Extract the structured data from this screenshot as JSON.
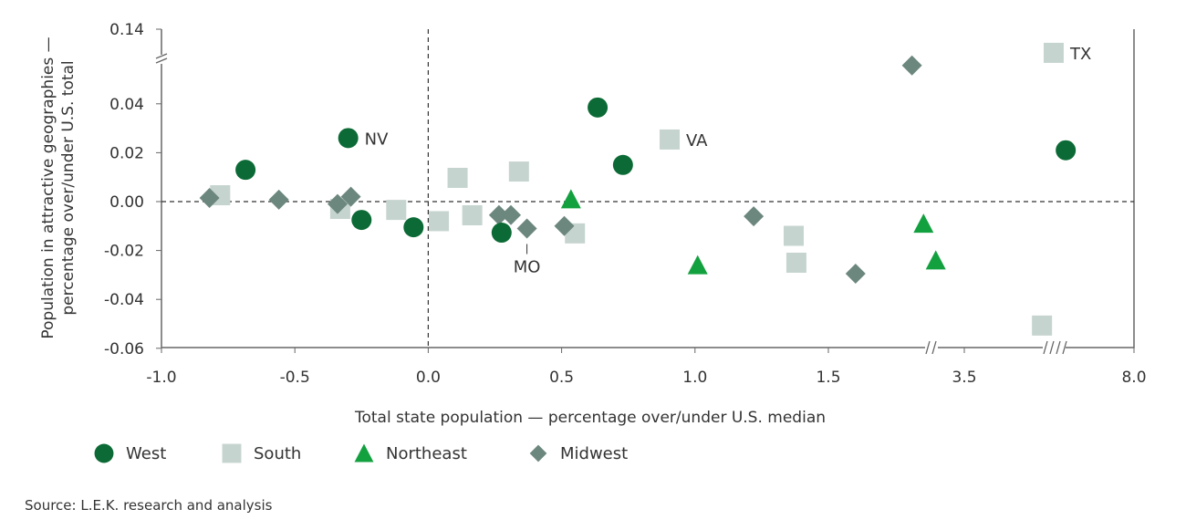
{
  "chart_data": {
    "type": "scatter",
    "title": "",
    "xlabel": "Total state population — percentage over/under U.S. median",
    "ylabel": [
      "Population in attractive geographies —",
      "percentage over/under U.S. total"
    ],
    "xlim": [
      -1.0,
      8.0
    ],
    "ylim": [
      -0.06,
      0.14
    ],
    "x_axis_breaks": [
      "between 1.5 and 3.5",
      "between 3.5 and 8.0"
    ],
    "y_axis_break": "between 0.04 and 0.14",
    "x_ticks": [
      "-1.0",
      "-0.5",
      "0.0",
      "0.5",
      "1.0",
      "1.5",
      "3.5",
      "8.0"
    ],
    "y_ticks": [
      "0.14",
      "0.04",
      "0.02",
      "0.00",
      "-0.02",
      "-0.04",
      "-0.06"
    ],
    "reference_lines": {
      "x": 0,
      "y": 0,
      "style": "dashed"
    },
    "grid": false,
    "legend_position": "bottom-left",
    "series": [
      {
        "name": "West",
        "marker": "circle",
        "color": "#0b6a35",
        "points": [
          [
            -0.685,
            0.013
          ],
          [
            -0.3,
            0.026
          ],
          [
            -0.25,
            -0.0075
          ],
          [
            -0.055,
            -0.0105
          ],
          [
            0.275,
            -0.0127
          ],
          [
            0.635,
            0.0385
          ],
          [
            0.73,
            0.015
          ],
          [
            6.19,
            0.021
          ]
        ]
      },
      {
        "name": "South",
        "marker": "square",
        "color": "#c6d4cf",
        "points": [
          [
            -0.78,
            0.0026
          ],
          [
            -0.33,
            -0.003
          ],
          [
            -0.12,
            -0.0034
          ],
          [
            0.04,
            -0.008
          ],
          [
            0.11,
            0.0097
          ],
          [
            0.165,
            -0.0056
          ],
          [
            0.34,
            0.0123
          ],
          [
            0.55,
            -0.013
          ],
          [
            0.905,
            0.0254
          ],
          [
            1.37,
            -0.014
          ],
          [
            1.38,
            -0.025
          ],
          [
            5.56,
            -0.0507
          ],
          [
            5.87,
            0.108
          ]
        ]
      },
      {
        "name": "Northeast",
        "marker": "triangle",
        "color": "#13a03f",
        "points": [
          [
            0.535,
            0.001
          ],
          [
            1.01,
            -0.026
          ],
          [
            2.9,
            -0.009
          ],
          [
            3.08,
            -0.024
          ]
        ]
      },
      {
        "name": "Midwest",
        "marker": "diamond",
        "color": "#6c877e",
        "points": [
          [
            -0.82,
            0.0015
          ],
          [
            -0.56,
            0.0008
          ],
          [
            -0.34,
            -0.001
          ],
          [
            -0.29,
            0.002
          ],
          [
            0.265,
            -0.0055
          ],
          [
            0.31,
            -0.0055
          ],
          [
            0.37,
            -0.011
          ],
          [
            0.51,
            -0.01
          ],
          [
            1.22,
            -0.006
          ],
          [
            1.9,
            -0.0295
          ],
          [
            2.73,
            0.091
          ]
        ]
      }
    ],
    "annotations": [
      {
        "text": "NV",
        "x": -0.3,
        "y": 0.026
      },
      {
        "text": "VA",
        "x": 0.905,
        "y": 0.0254
      },
      {
        "text": "TX",
        "x": 5.87,
        "y": 0.108
      },
      {
        "text": "MO",
        "x": 0.37,
        "y": -0.011
      }
    ]
  },
  "source": "Source: L.E.K. research and analysis"
}
